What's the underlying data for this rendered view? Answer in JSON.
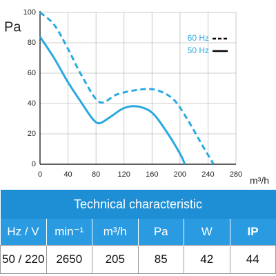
{
  "chart_data": {
    "type": "line",
    "y_label": "Pa",
    "x_label": "m³/h",
    "xlim": [
      0,
      280
    ],
    "xticks": [
      0,
      40,
      80,
      120,
      160,
      200,
      240,
      280
    ],
    "ylim": [
      0,
      100
    ],
    "yticks": [
      0,
      20,
      40,
      60,
      80,
      100
    ],
    "grid": true,
    "legend": "top right",
    "series": [
      {
        "name": "60 Hz",
        "color": "#29a9e1",
        "line_style": "dashed",
        "x": [
          0,
          20,
          40,
          60,
          85,
          110,
          140,
          165,
          190,
          210,
          230,
          248
        ],
        "values": [
          100,
          92,
          76,
          58,
          41,
          46,
          49,
          49,
          43,
          30,
          14,
          0
        ]
      },
      {
        "name": "50 Hz",
        "color": "#29a9e1",
        "line_style": "solid",
        "x": [
          0,
          20,
          40,
          60,
          75,
          85,
          100,
          120,
          140,
          160,
          180,
          200,
          207
        ],
        "values": [
          84,
          70,
          54,
          40,
          30,
          27,
          31,
          37,
          38,
          34,
          22,
          7,
          0
        ]
      }
    ]
  },
  "table": {
    "title": "Technical characteristic",
    "header": [
      "Hz / V",
      "min⁻¹",
      "m³/h",
      "Pa",
      "W",
      "IP"
    ],
    "rows": [
      [
        "50 / 220",
        "2650",
        "205",
        "85",
        "42",
        "44"
      ]
    ]
  }
}
